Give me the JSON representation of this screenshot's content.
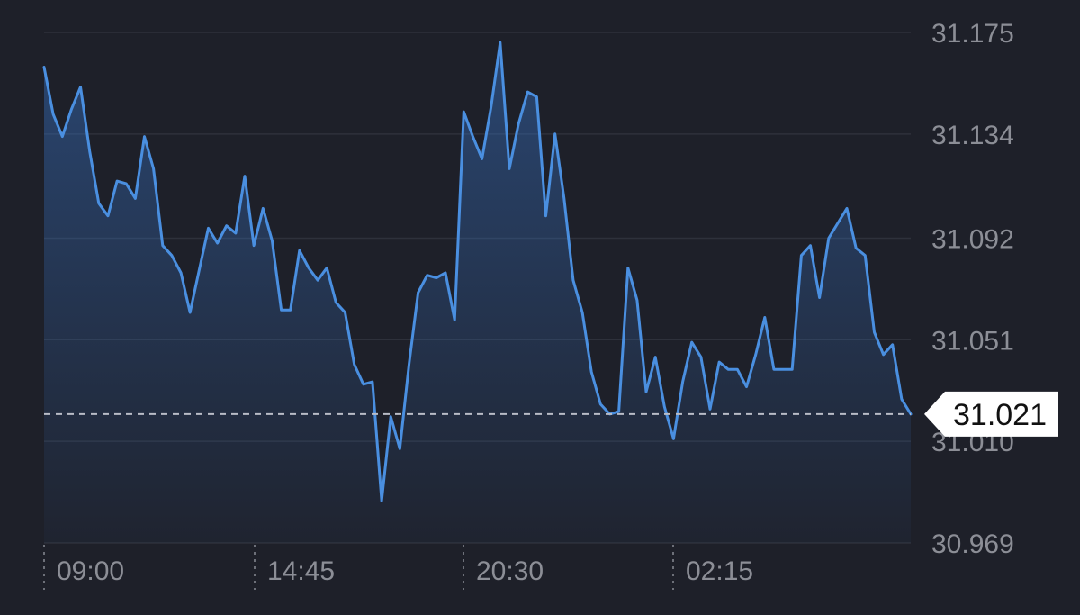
{
  "chart_data": {
    "type": "area",
    "title": "",
    "xlabel": "",
    "ylabel": "",
    "y_ticks": [
      "31.175",
      "31.134",
      "31.092",
      "31.051",
      "31.010",
      "30.969"
    ],
    "y_tick_values": [
      31.175,
      31.134,
      31.092,
      31.051,
      31.01,
      30.969
    ],
    "ylim": [
      30.969,
      31.175
    ],
    "x_ticks": [
      "09:00",
      "14:45",
      "20:30",
      "02:15"
    ],
    "grid": true,
    "current_value_label": "31.021",
    "current_value": 31.021,
    "colors": {
      "background": "#1e2029",
      "line": "#4a8fe0",
      "grid": "#2e313b",
      "axis_text": "#8c8e96",
      "label_bg": "#ffffff"
    },
    "series": [
      {
        "values": [
          31.161,
          31.142,
          31.133,
          31.144,
          31.153,
          31.127,
          31.106,
          31.101,
          31.115,
          31.114,
          31.108,
          31.133,
          31.12,
          31.089,
          31.085,
          31.078,
          31.062,
          31.079,
          31.096,
          31.09,
          31.097,
          31.094,
          31.117,
          31.089,
          31.104,
          31.091,
          31.063,
          31.063,
          31.087,
          31.08,
          31.075,
          31.08,
          31.066,
          31.062,
          31.041,
          31.033,
          31.034,
          30.986,
          31.02,
          31.007,
          31.041,
          31.07,
          31.077,
          31.076,
          31.078,
          31.059,
          31.143,
          31.133,
          31.124,
          31.145,
          31.171,
          31.12,
          31.138,
          31.151,
          31.149,
          31.101,
          31.134,
          31.108,
          31.075,
          31.062,
          31.038,
          31.025,
          31.021,
          31.022,
          31.08,
          31.067,
          31.03,
          31.044,
          31.024,
          31.011,
          31.034,
          31.05,
          31.044,
          31.023,
          31.042,
          31.039,
          31.039,
          31.032,
          31.045,
          31.06,
          31.039,
          31.039,
          31.039,
          31.085,
          31.089,
          31.068,
          31.092,
          31.098,
          31.104,
          31.088,
          31.085,
          31.054,
          31.045,
          31.049,
          31.027,
          31.021
        ]
      }
    ]
  }
}
